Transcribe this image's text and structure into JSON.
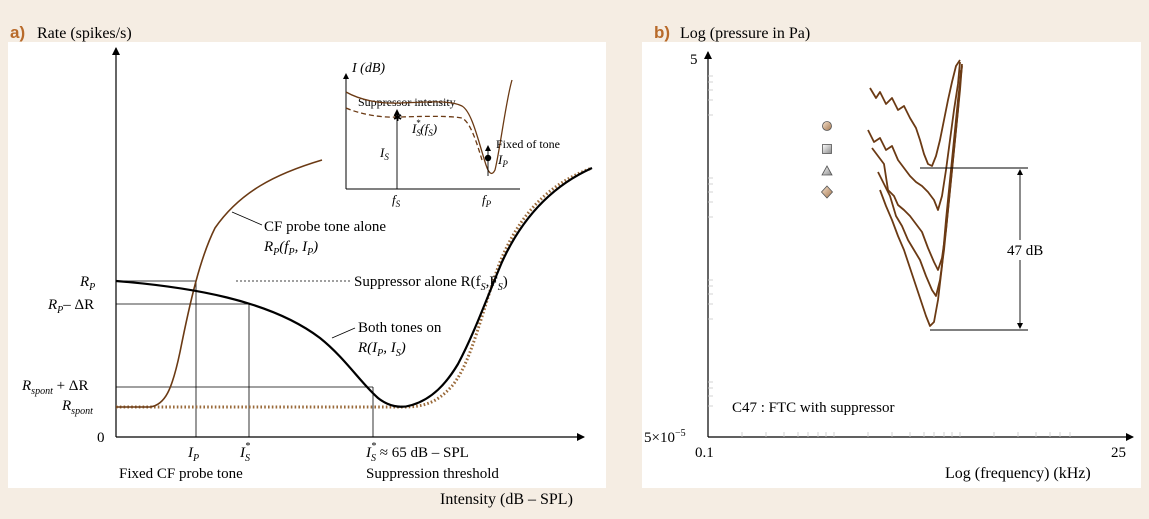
{
  "colors": {
    "background": "#f5ede3",
    "panel": "#ffffff",
    "panel_letter": "#b86a2a",
    "brown_curve": "#6b3a14",
    "black_curve": "#000000",
    "dotted_curve": "#9a6a3a"
  },
  "panel_a": {
    "letter": "a)",
    "ylabel": "Rate (spikes/s)",
    "xlabel": "Intensity (dB – SPL)",
    "y_ticks": {
      "rp": "R",
      "rp_sub": "P",
      "rp_minus": "R",
      "rp_minus_sub": "P",
      "rp_minus_suffix": "– ΔR",
      "rspont_plus": "R",
      "rspont_plus_sub": "spont",
      "rspont_plus_suffix": " + ΔR",
      "rspont": "R",
      "rspont_sub": "spont",
      "zero": "0"
    },
    "x_ticks": {
      "ip": "I",
      "ip_sub": "P",
      "is_star": "I",
      "is_star_sub": "S",
      "is_star_sup": "*",
      "threshold": "I",
      "threshold_sub": "S",
      "threshold_sup": "*",
      "threshold_suffix": " ≈ 65 dB – SPL"
    },
    "x_notes": {
      "probe": "Fixed CF probe tone",
      "suppression": "Suppression threshold"
    },
    "annotations": {
      "cf_line1": "CF probe tone alone",
      "cf_line2": "R",
      "cf_line2_sub": "P",
      "cf_line2_rest": "(f",
      "cf_line2_sub2": "P",
      "cf_line2_rest2": ", I",
      "cf_line2_sub3": "P",
      "cf_line2_end": ")",
      "supp_alone": "Suppressor alone R(f",
      "supp_alone_sub": "S",
      "supp_alone_rest": ",F",
      "supp_alone_sub2": "S",
      "supp_alone_end": ")",
      "both_line1": "Both tones on",
      "both_line2": "R(I",
      "both_line2_sub": "P",
      "both_line2_rest": ", I",
      "both_line2_sub2": "S",
      "both_line2_end": ")"
    },
    "inset": {
      "ylabel": "I (dB)",
      "supp_intensity": "Suppressor intensity",
      "is_label": "I",
      "is_label_sub": "S",
      "is_star": "I",
      "is_star_sub": "S",
      "is_star_sup": "*",
      "is_star_rest": "(f",
      "is_star_sub2": "S",
      "is_star_end": ")",
      "fixed_tone": "Fixed of tone",
      "ip_label": "I",
      "ip_label_sub": "P",
      "fs_tick": "f",
      "fs_tick_sub": "S",
      "fp_tick": "f",
      "fp_tick_sub": "P"
    }
  },
  "panel_b": {
    "letter": "b)",
    "ylabel": "Log (pressure in Pa)",
    "xlabel": "Log (frequency)  (kHz)",
    "y_top": "5",
    "y_bottom": "5×10",
    "y_bottom_sup": "−5",
    "x_left": "0.1",
    "x_right": "25",
    "span_label": "47 dB",
    "caption": "C47 : FTC with suppressor",
    "legend_markers": [
      "circle",
      "square",
      "triangle",
      "diamond"
    ]
  }
}
